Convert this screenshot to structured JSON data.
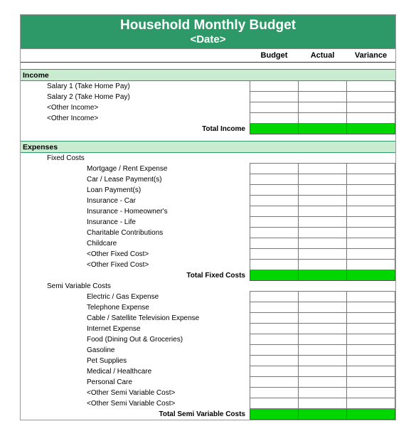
{
  "colors": {
    "header_bg": "#2e9968",
    "header_text": "#ffffff",
    "section_bg": "#c9ecd0",
    "section_border": "#2e9968",
    "total_bg": "#00d600",
    "cell_border": "#777777",
    "page_bg": "#ffffff"
  },
  "header": {
    "title": "Household Monthly Budget",
    "subtitle": "<Date>"
  },
  "columns": {
    "budget": "Budget",
    "actual": "Actual",
    "variance": "Variance"
  },
  "sections": {
    "income": {
      "label": "Income",
      "items": [
        "Salary 1 (Take Home Pay)",
        "Salary 2 (Take Home Pay)",
        "<Other Income>",
        "<Other Income>"
      ],
      "total_label": "Total Income"
    },
    "expenses": {
      "label": "Expenses",
      "groups": {
        "fixed": {
          "label": "Fixed Costs",
          "items": [
            "Mortgage / Rent Expense",
            "Car / Lease Payment(s)",
            "Loan Payment(s)",
            "Insurance - Car",
            "Insurance - Homeowner's",
            "Insurance - Life",
            "Charitable Contributions",
            "Childcare",
            "<Other Fixed Cost>",
            "<Other Fixed Cost>"
          ],
          "total_label": "Total Fixed Costs"
        },
        "semi": {
          "label": "Semi Variable Costs",
          "items": [
            "Electric / Gas Expense",
            "Telephone Expense",
            "Cable / Satellite Television Expense",
            "Internet Expense",
            "Food (Dining Out & Groceries)",
            "Gasoline",
            "Pet Supplies",
            "Medical / Healthcare",
            "Personal Care",
            "<Other Semi Variable Cost>",
            "<Other Semi Variable Cost>"
          ],
          "total_label": "Total Semi Variable Costs"
        }
      }
    }
  }
}
